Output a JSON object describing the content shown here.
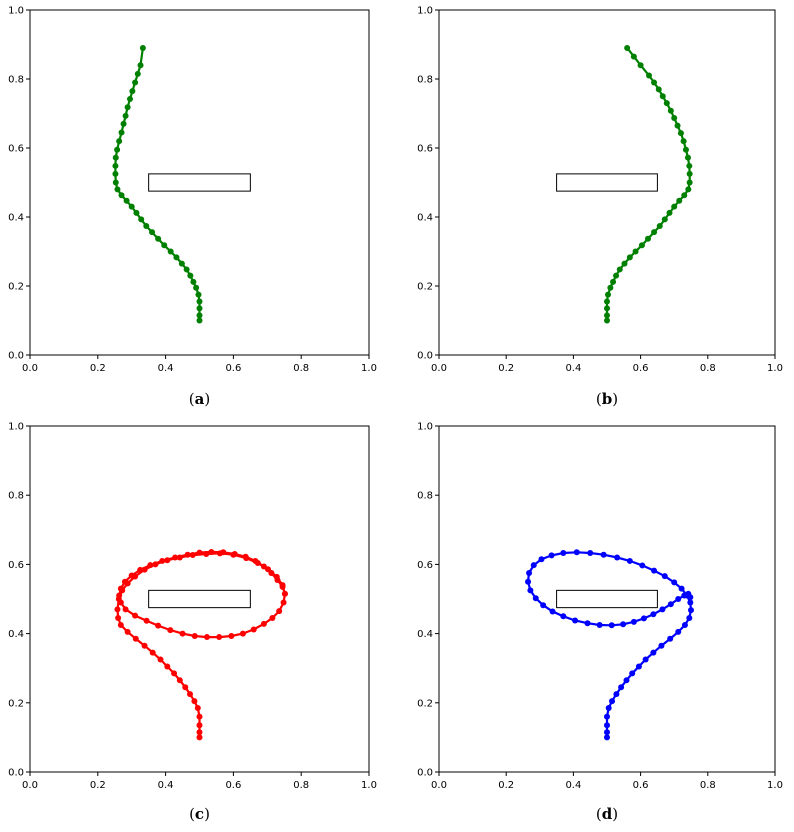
{
  "chart_data": [
    {
      "id": "a",
      "type": "scatter",
      "panel_label": "a",
      "color": "#008000",
      "xlim": [
        0,
        1
      ],
      "ylim": [
        0,
        1
      ],
      "xticks": [
        "0.0",
        "0.2",
        "0.4",
        "0.6",
        "0.8",
        "1.0"
      ],
      "yticks": [
        "0.0",
        "0.2",
        "0.4",
        "0.6",
        "0.8",
        "1.0"
      ],
      "grid": false,
      "obstacle": {
        "x": [
          0.35,
          0.65
        ],
        "y": [
          0.475,
          0.525
        ]
      },
      "x": [
        0.5,
        0.5,
        0.5,
        0.5,
        0.497,
        0.49,
        0.482,
        0.473,
        0.462,
        0.448,
        0.432,
        0.415,
        0.396,
        0.378,
        0.36,
        0.343,
        0.328,
        0.314,
        0.3,
        0.285,
        0.27,
        0.258,
        0.253,
        0.252,
        0.252,
        0.253,
        0.257,
        0.263,
        0.27,
        0.276,
        0.282,
        0.288,
        0.295,
        0.302,
        0.31,
        0.318,
        0.326,
        0.333
      ],
      "y": [
        0.1,
        0.115,
        0.135,
        0.155,
        0.175,
        0.195,
        0.212,
        0.23,
        0.248,
        0.265,
        0.283,
        0.3,
        0.318,
        0.337,
        0.356,
        0.374,
        0.393,
        0.412,
        0.43,
        0.447,
        0.463,
        0.48,
        0.5,
        0.525,
        0.548,
        0.572,
        0.595,
        0.62,
        0.645,
        0.67,
        0.693,
        0.718,
        0.742,
        0.765,
        0.79,
        0.815,
        0.84,
        0.89
      ]
    },
    {
      "id": "b",
      "type": "scatter",
      "panel_label": "b",
      "color": "#008000",
      "xlim": [
        0,
        1
      ],
      "ylim": [
        0,
        1
      ],
      "xticks": [
        "0.0",
        "0.2",
        "0.4",
        "0.6",
        "0.8",
        "1.0"
      ],
      "yticks": [
        "0.0",
        "0.2",
        "0.4",
        "0.6",
        "0.8",
        "1.0"
      ],
      "grid": false,
      "obstacle": {
        "x": [
          0.35,
          0.65
        ],
        "y": [
          0.475,
          0.525
        ]
      },
      "x": [
        0.5,
        0.5,
        0.5,
        0.5,
        0.503,
        0.51,
        0.518,
        0.527,
        0.538,
        0.552,
        0.568,
        0.585,
        0.604,
        0.622,
        0.64,
        0.657,
        0.672,
        0.686,
        0.7,
        0.715,
        0.73,
        0.742,
        0.746,
        0.746,
        0.745,
        0.741,
        0.735,
        0.728,
        0.72,
        0.71,
        0.7,
        0.69,
        0.678,
        0.666,
        0.654,
        0.64,
        0.625,
        0.6,
        0.58,
        0.56
      ],
      "y": [
        0.1,
        0.115,
        0.135,
        0.155,
        0.175,
        0.195,
        0.212,
        0.23,
        0.248,
        0.265,
        0.283,
        0.3,
        0.318,
        0.337,
        0.356,
        0.374,
        0.393,
        0.412,
        0.43,
        0.447,
        0.463,
        0.48,
        0.5,
        0.525,
        0.548,
        0.572,
        0.595,
        0.62,
        0.643,
        0.665,
        0.687,
        0.708,
        0.73,
        0.75,
        0.77,
        0.79,
        0.81,
        0.84,
        0.865,
        0.89
      ]
    },
    {
      "id": "c",
      "type": "scatter",
      "panel_label": "c",
      "color": "#ff0000",
      "xlim": [
        0,
        1
      ],
      "ylim": [
        0,
        1
      ],
      "xticks": [
        "0.0",
        "0.2",
        "0.4",
        "0.6",
        "0.8",
        "1.0"
      ],
      "yticks": [
        "0.0",
        "0.2",
        "0.4",
        "0.6",
        "0.8",
        "1.0"
      ],
      "grid": false,
      "obstacle": {
        "x": [
          0.35,
          0.65
        ],
        "y": [
          0.475,
          0.525
        ]
      },
      "x": [
        0.5,
        0.5,
        0.5,
        0.5,
        0.495,
        0.485,
        0.472,
        0.458,
        0.442,
        0.425,
        0.405,
        0.385,
        0.362,
        0.338,
        0.312,
        0.288,
        0.268,
        0.26,
        0.258,
        0.262,
        0.272,
        0.288,
        0.31,
        0.338,
        0.37,
        0.405,
        0.442,
        0.48,
        0.52,
        0.56,
        0.6,
        0.638,
        0.672,
        0.702,
        0.728,
        0.745,
        0.752,
        0.748,
        0.735,
        0.715,
        0.69,
        0.66,
        0.628,
        0.594,
        0.558,
        0.522,
        0.486,
        0.45,
        0.414,
        0.378,
        0.344,
        0.31,
        0.282,
        0.268,
        0.263,
        0.268,
        0.28,
        0.3,
        0.325,
        0.355,
        0.39,
        0.428,
        0.465,
        0.5,
        0.535,
        0.57,
        0.604,
        0.636,
        0.665,
        0.69,
        0.712,
        0.73,
        0.745,
        0.752
      ],
      "y": [
        0.1,
        0.115,
        0.135,
        0.16,
        0.185,
        0.205,
        0.225,
        0.245,
        0.265,
        0.285,
        0.305,
        0.325,
        0.345,
        0.365,
        0.385,
        0.405,
        0.425,
        0.445,
        0.47,
        0.5,
        0.525,
        0.545,
        0.565,
        0.585,
        0.6,
        0.612,
        0.62,
        0.627,
        0.63,
        0.632,
        0.628,
        0.618,
        0.604,
        0.586,
        0.564,
        0.54,
        0.515,
        0.49,
        0.465,
        0.445,
        0.428,
        0.412,
        0.4,
        0.393,
        0.39,
        0.39,
        0.393,
        0.4,
        0.41,
        0.423,
        0.437,
        0.452,
        0.47,
        0.49,
        0.51,
        0.53,
        0.55,
        0.568,
        0.584,
        0.598,
        0.61,
        0.62,
        0.628,
        0.634,
        0.636,
        0.635,
        0.63,
        0.622,
        0.61,
        0.594,
        0.575,
        0.555,
        0.535,
        0.515
      ]
    },
    {
      "id": "d",
      "type": "scatter",
      "panel_label": "d",
      "color": "#0000ff",
      "xlim": [
        0,
        1
      ],
      "ylim": [
        0,
        1
      ],
      "xticks": [
        "0.0",
        "0.2",
        "0.4",
        "0.6",
        "0.8",
        "1.0"
      ],
      "yticks": [
        "0.0",
        "0.2",
        "0.4",
        "0.6",
        "0.8",
        "1.0"
      ],
      "grid": false,
      "obstacle": {
        "x": [
          0.35,
          0.65
        ],
        "y": [
          0.475,
          0.525
        ]
      },
      "x": [
        0.5,
        0.5,
        0.5,
        0.5,
        0.505,
        0.515,
        0.528,
        0.542,
        0.558,
        0.575,
        0.595,
        0.615,
        0.638,
        0.662,
        0.688,
        0.712,
        0.732,
        0.745,
        0.75,
        0.748,
        0.738,
        0.722,
        0.7,
        0.672,
        0.64,
        0.605,
        0.568,
        0.53,
        0.49,
        0.45,
        0.41,
        0.37,
        0.335,
        0.305,
        0.282,
        0.268,
        0.265,
        0.272,
        0.288,
        0.31,
        0.338,
        0.37,
        0.405,
        0.442,
        0.478,
        0.514,
        0.548,
        0.58,
        0.61,
        0.638,
        0.665,
        0.69,
        0.712,
        0.73,
        0.742,
        0.748
      ],
      "y": [
        0.1,
        0.115,
        0.135,
        0.16,
        0.185,
        0.205,
        0.225,
        0.245,
        0.265,
        0.285,
        0.305,
        0.325,
        0.345,
        0.365,
        0.385,
        0.405,
        0.425,
        0.445,
        0.468,
        0.49,
        0.51,
        0.53,
        0.548,
        0.566,
        0.582,
        0.597,
        0.61,
        0.62,
        0.628,
        0.633,
        0.635,
        0.633,
        0.626,
        0.615,
        0.598,
        0.575,
        0.55,
        0.525,
        0.502,
        0.482,
        0.464,
        0.45,
        0.438,
        0.43,
        0.425,
        0.424,
        0.427,
        0.434,
        0.444,
        0.456,
        0.47,
        0.485,
        0.5,
        0.51,
        0.515,
        0.505
      ]
    }
  ]
}
